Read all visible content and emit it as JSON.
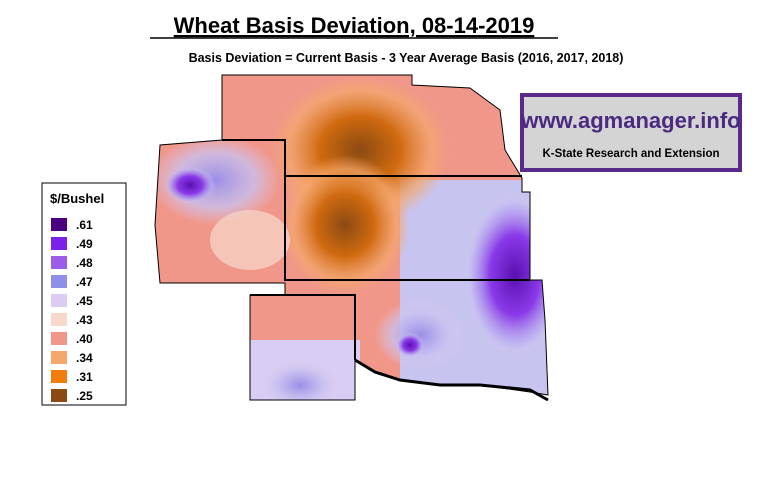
{
  "header": {
    "title": "Wheat Basis Deviation, 08-14-2019",
    "subtitle": "Basis Deviation = Current Basis - 3 Year Average Basis (2016, 2017, 2018)"
  },
  "logo": {
    "url": "www.agmanager.info",
    "org": "K-State Research and Extension"
  },
  "legend": {
    "title": "$/Bushel",
    "items": [
      {
        "label": ".61",
        "color": "#4b0082"
      },
      {
        "label": ".49",
        "color": "#7b22e8"
      },
      {
        "label": ".48",
        "color": "#9b5de8"
      },
      {
        "label": ".47",
        "color": "#8f8fea"
      },
      {
        "label": ".45",
        "color": "#dccbf2"
      },
      {
        "label": ".43",
        "color": "#f6d9cb"
      },
      {
        "label": ".40",
        "color": "#f0978a"
      },
      {
        "label": ".34",
        "color": "#f4a86c"
      },
      {
        "label": ".31",
        "color": "#f07d0e"
      },
      {
        "label": ".25",
        "color": "#8b4a12"
      }
    ]
  }
}
